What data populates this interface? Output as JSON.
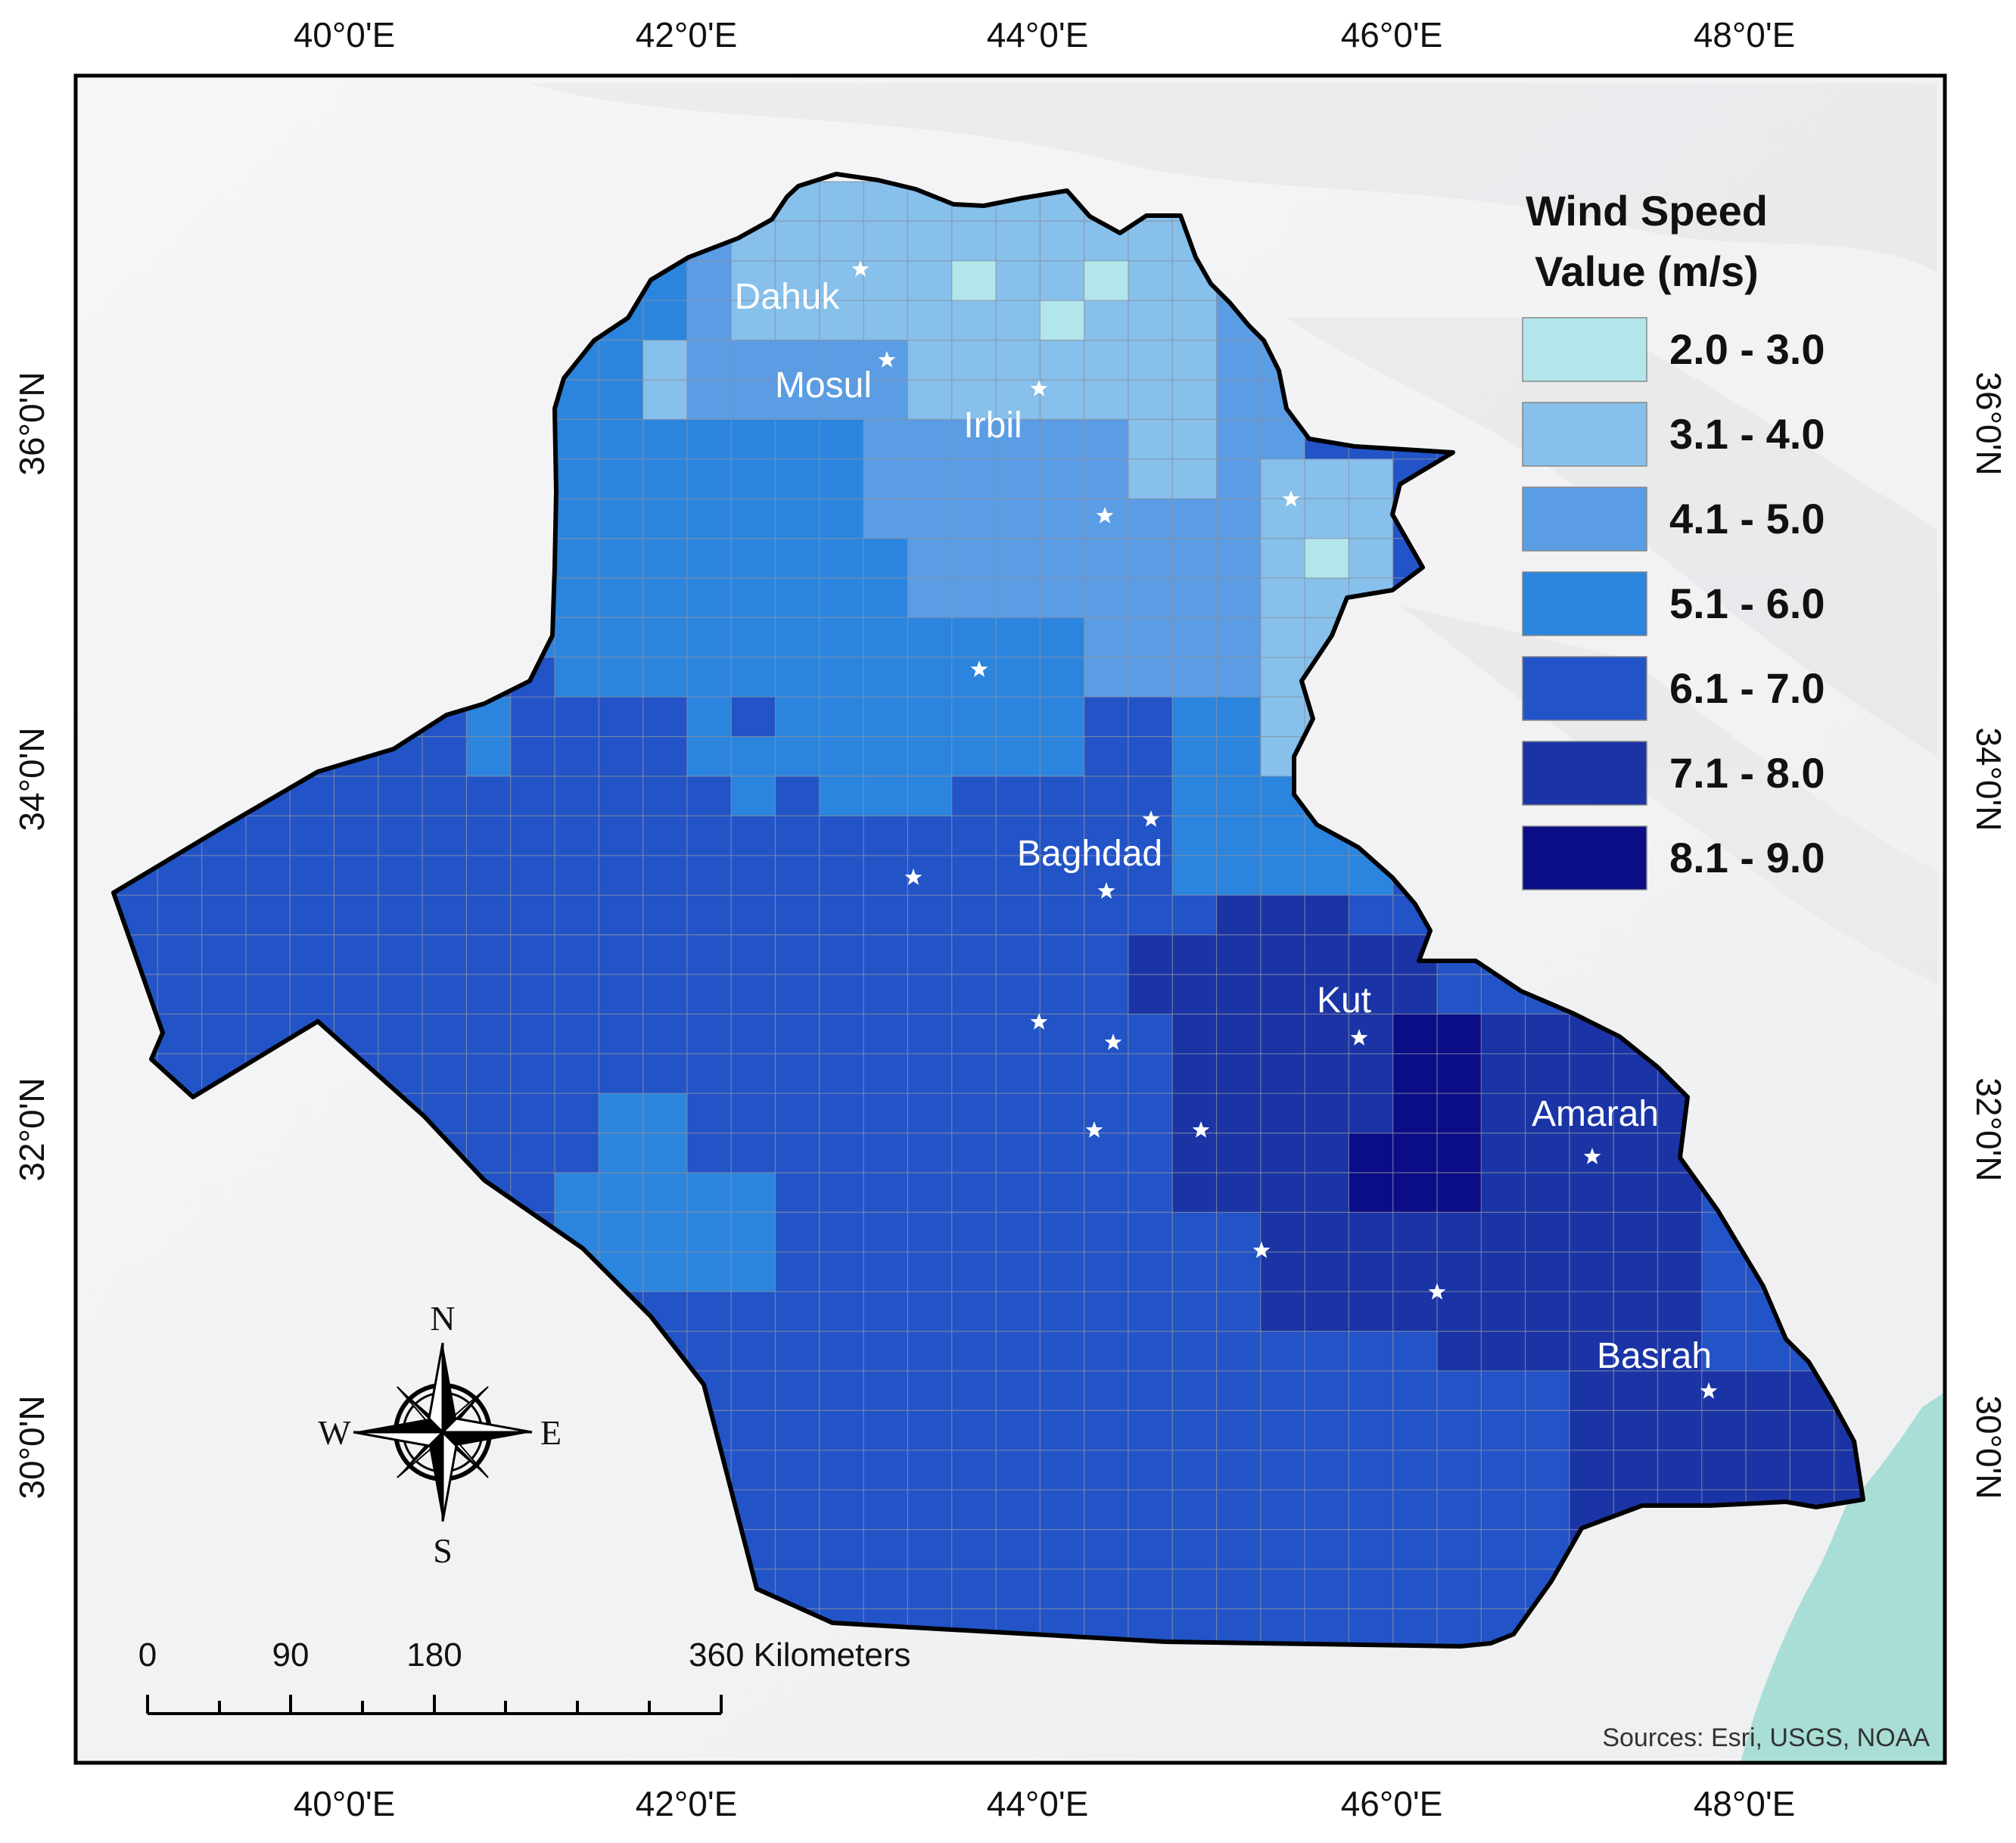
{
  "map": {
    "title": "",
    "colors": {
      "background_land": "#f3f4f5",
      "water": "#a8ded6",
      "boundary": "#000000",
      "grid_line": "#8a8fa0",
      "class_1": "#b2e6ea",
      "class_2": "#86c0eb",
      "class_3": "#5b9de4",
      "class_4": "#2b85de",
      "class_5": "#2254c8",
      "class_6": "#1a34a6",
      "class_7": "#0b0d86"
    },
    "top_axis": [
      "40°0'E",
      "42°0'E",
      "44°0'E",
      "46°0'E",
      "48°0'E"
    ],
    "bottom_axis": [
      "40°0'E",
      "42°0'E",
      "44°0'E",
      "46°0'E",
      "48°0'E"
    ],
    "left_axis": [
      "36°0'N",
      "34°0'N",
      "32°0'N",
      "30°0'N"
    ],
    "right_axis": [
      "36°0'N",
      "34°0'N",
      "32°0'N",
      "30°0'N"
    ],
    "cities": [
      "Dahuk",
      "Mosul",
      "Irbil",
      "Baghdad",
      "Kut",
      "Amarah",
      "Basrah"
    ],
    "station_marker": "star-icon",
    "legend": {
      "title_line1": "Wind Speed",
      "title_line2": "Value (m/s)",
      "classes": [
        {
          "label": "2.0 - 3.0",
          "color": "#b2e6ea"
        },
        {
          "label": "3.1 - 4.0",
          "color": "#86c0eb"
        },
        {
          "label": "4.1 - 5.0",
          "color": "#5b9de4"
        },
        {
          "label": "5.1 - 6.0",
          "color": "#2b85de"
        },
        {
          "label": "6.1 - 7.0",
          "color": "#2254c8"
        },
        {
          "label": "7.1 - 8.0",
          "color": "#1a34a6"
        },
        {
          "label": "8.1 - 9.0",
          "color": "#0b0d86"
        }
      ]
    },
    "compass": {
      "n": "N",
      "s": "S",
      "e": "E",
      "w": "W"
    },
    "scale_bar": {
      "labels": [
        "0",
        "90",
        "180",
        "360 Kilometers"
      ]
    },
    "sources": "Sources: Esri, USGS, NOAA"
  }
}
